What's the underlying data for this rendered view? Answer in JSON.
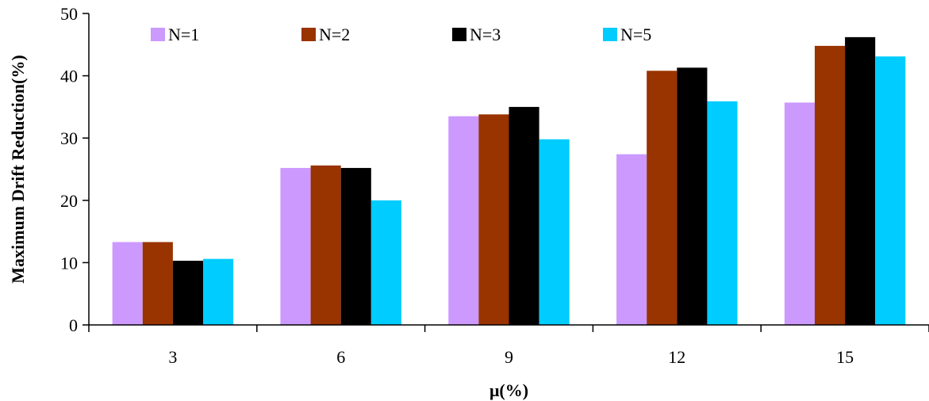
{
  "chart_data": {
    "type": "bar",
    "xlabel": "μ(%)",
    "ylabel": "Maximum Drift Reduction(%)",
    "categories": [
      "3",
      "6",
      "9",
      "12",
      "15"
    ],
    "ylim": [
      0,
      50
    ],
    "yticks": [
      "0",
      "10",
      "20",
      "30",
      "40",
      "50"
    ],
    "grid": false,
    "legend_position": "top",
    "series": [
      {
        "name": "N=1",
        "color": "#CC99FF",
        "values": [
          13.3,
          25.2,
          33.5,
          27.4,
          35.7
        ]
      },
      {
        "name": "N=2",
        "color": "#993300",
        "values": [
          13.3,
          25.6,
          33.8,
          40.8,
          44.8
        ]
      },
      {
        "name": "N=3",
        "color": "#000000",
        "values": [
          10.3,
          25.2,
          35.0,
          41.3,
          46.2
        ]
      },
      {
        "name": "N=5",
        "color": "#00CCFF",
        "values": [
          10.6,
          20.0,
          29.8,
          35.9,
          43.1
        ]
      }
    ]
  }
}
